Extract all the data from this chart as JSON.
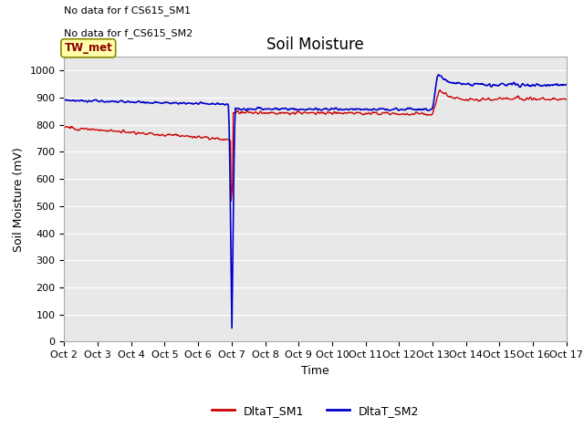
{
  "title": "Soil Moisture",
  "ylabel": "Soil Moisture (mV)",
  "xlabel": "Time",
  "ylim": [
    0,
    1050
  ],
  "yticks": [
    0,
    100,
    200,
    300,
    400,
    500,
    600,
    700,
    800,
    900,
    1000
  ],
  "bg_color": "#e8e8e8",
  "fig_color": "#ffffff",
  "note_line1": "No data for f CS615_SM1",
  "note_line2": "No data for f_CS615_SM2",
  "legend_label1": "DltaT_SM1",
  "legend_label2": "DltaT_SM2",
  "legend_color1": "#cc0000",
  "legend_color2": "#0000cc",
  "tw_met_label": "TW_met",
  "tw_met_bg": "#ffffaa",
  "tw_met_border": "#888800",
  "x_tick_labels": [
    "Oct 2",
    "Oct 3",
    "Oct 4",
    "Oct 5",
    "Oct 6",
    "Oct 7",
    "Oct 8",
    "Oct 9",
    "Oct 10",
    "Oct 11",
    "Oct 12",
    "Oct 13",
    "Oct 14",
    "Oct 15",
    "Oct 16",
    "Oct 17"
  ],
  "title_fontsize": 12,
  "axis_fontsize": 9,
  "tick_fontsize": 8,
  "note_fontsize": 8
}
